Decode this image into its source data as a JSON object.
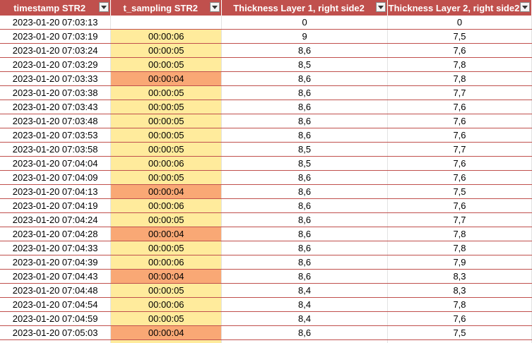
{
  "headers": [
    {
      "label": "timestamp STR2"
    },
    {
      "label": "t_sampling  STR2"
    },
    {
      "label": "Thickness Layer 1, right side2"
    },
    {
      "label": "Thickness Layer 2, right side2"
    }
  ],
  "colors": {
    "header_bg": "#c0504d",
    "highlight_yellow": "#ffeb9c",
    "highlight_orange": "#f9a875"
  },
  "rows": [
    {
      "timestamp": "2023-01-20 07:03:13",
      "sampling": "",
      "sampling_color": "none",
      "layer1": "0",
      "layer2": "0"
    },
    {
      "timestamp": "2023-01-20 07:03:19",
      "sampling": "00:00:06",
      "sampling_color": "yellow",
      "layer1": "9",
      "layer2": "7,5"
    },
    {
      "timestamp": "2023-01-20 07:03:24",
      "sampling": "00:00:05",
      "sampling_color": "yellow",
      "layer1": "8,6",
      "layer2": "7,6"
    },
    {
      "timestamp": "2023-01-20 07:03:29",
      "sampling": "00:00:05",
      "sampling_color": "yellow",
      "layer1": "8,5",
      "layer2": "7,8"
    },
    {
      "timestamp": "2023-01-20 07:03:33",
      "sampling": "00:00:04",
      "sampling_color": "orange",
      "layer1": "8,6",
      "layer2": "7,8"
    },
    {
      "timestamp": "2023-01-20 07:03:38",
      "sampling": "00:00:05",
      "sampling_color": "yellow",
      "layer1": "8,6",
      "layer2": "7,7"
    },
    {
      "timestamp": "2023-01-20 07:03:43",
      "sampling": "00:00:05",
      "sampling_color": "yellow",
      "layer1": "8,6",
      "layer2": "7,6"
    },
    {
      "timestamp": "2023-01-20 07:03:48",
      "sampling": "00:00:05",
      "sampling_color": "yellow",
      "layer1": "8,6",
      "layer2": "7,6"
    },
    {
      "timestamp": "2023-01-20 07:03:53",
      "sampling": "00:00:05",
      "sampling_color": "yellow",
      "layer1": "8,6",
      "layer2": "7,6"
    },
    {
      "timestamp": "2023-01-20 07:03:58",
      "sampling": "00:00:05",
      "sampling_color": "yellow",
      "layer1": "8,5",
      "layer2": "7,7"
    },
    {
      "timestamp": "2023-01-20 07:04:04",
      "sampling": "00:00:06",
      "sampling_color": "yellow",
      "layer1": "8,5",
      "layer2": "7,6"
    },
    {
      "timestamp": "2023-01-20 07:04:09",
      "sampling": "00:00:05",
      "sampling_color": "yellow",
      "layer1": "8,6",
      "layer2": "7,6"
    },
    {
      "timestamp": "2023-01-20 07:04:13",
      "sampling": "00:00:04",
      "sampling_color": "orange",
      "layer1": "8,6",
      "layer2": "7,5"
    },
    {
      "timestamp": "2023-01-20 07:04:19",
      "sampling": "00:00:06",
      "sampling_color": "yellow",
      "layer1": "8,6",
      "layer2": "7,6"
    },
    {
      "timestamp": "2023-01-20 07:04:24",
      "sampling": "00:00:05",
      "sampling_color": "yellow",
      "layer1": "8,6",
      "layer2": "7,7"
    },
    {
      "timestamp": "2023-01-20 07:04:28",
      "sampling": "00:00:04",
      "sampling_color": "orange",
      "layer1": "8,6",
      "layer2": "7,8"
    },
    {
      "timestamp": "2023-01-20 07:04:33",
      "sampling": "00:00:05",
      "sampling_color": "yellow",
      "layer1": "8,6",
      "layer2": "7,8"
    },
    {
      "timestamp": "2023-01-20 07:04:39",
      "sampling": "00:00:06",
      "sampling_color": "yellow",
      "layer1": "8,6",
      "layer2": "7,9"
    },
    {
      "timestamp": "2023-01-20 07:04:43",
      "sampling": "00:00:04",
      "sampling_color": "orange",
      "layer1": "8,6",
      "layer2": "8,3"
    },
    {
      "timestamp": "2023-01-20 07:04:48",
      "sampling": "00:00:05",
      "sampling_color": "yellow",
      "layer1": "8,4",
      "layer2": "8,3"
    },
    {
      "timestamp": "2023-01-20 07:04:54",
      "sampling": "00:00:06",
      "sampling_color": "yellow",
      "layer1": "8,4",
      "layer2": "7,8"
    },
    {
      "timestamp": "2023-01-20 07:04:59",
      "sampling": "00:00:05",
      "sampling_color": "yellow",
      "layer1": "8,4",
      "layer2": "7,6"
    },
    {
      "timestamp": "2023-01-20 07:05:03",
      "sampling": "00:00:04",
      "sampling_color": "orange",
      "layer1": "8,6",
      "layer2": "7,5"
    }
  ]
}
